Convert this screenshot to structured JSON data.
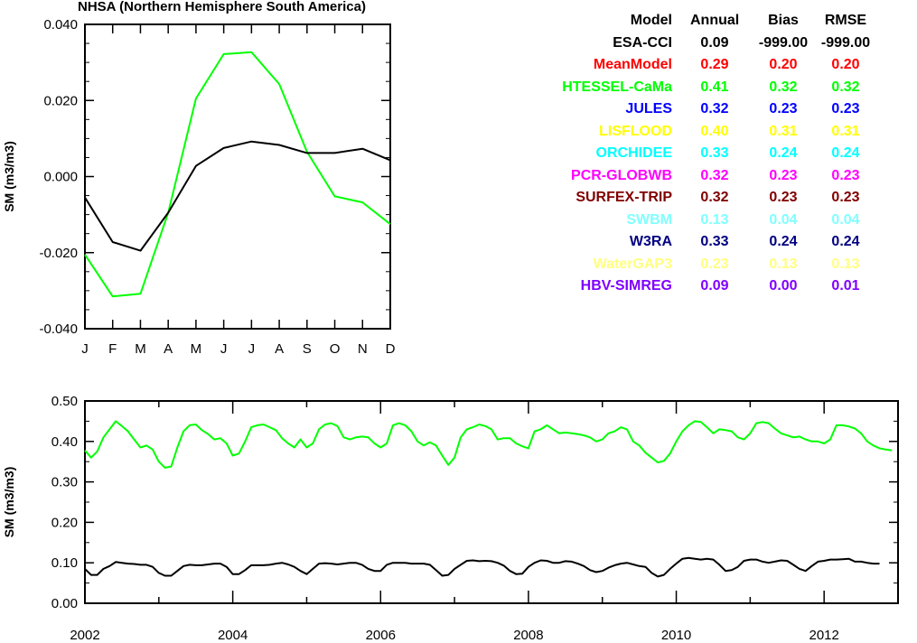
{
  "top_title": "NHSA (Northern Hemisphere South America)",
  "table": {
    "header": [
      "Model",
      "Annual",
      "Bias",
      "RMSE"
    ],
    "rows": [
      {
        "model": "ESA-CCI",
        "annual": "0.09",
        "bias": "-999.00",
        "rmse": "-999.00",
        "color": "#000000"
      },
      {
        "model": "MeanModel",
        "annual": "0.29",
        "bias": "0.20",
        "rmse": "0.20",
        "color": "#ff0000"
      },
      {
        "model": "HTESSEL-CaMa",
        "annual": "0.41",
        "bias": "0.32",
        "rmse": "0.32",
        "color": "#00ff00"
      },
      {
        "model": "JULES",
        "annual": "0.32",
        "bias": "0.23",
        "rmse": "0.23",
        "color": "#0000ff"
      },
      {
        "model": "LISFLOOD",
        "annual": "0.40",
        "bias": "0.31",
        "rmse": "0.31",
        "color": "#ffff00"
      },
      {
        "model": "ORCHIDEE",
        "annual": "0.33",
        "bias": "0.24",
        "rmse": "0.24",
        "color": "#00ffff"
      },
      {
        "model": "PCR-GLOBWB",
        "annual": "0.32",
        "bias": "0.23",
        "rmse": "0.23",
        "color": "#ff00ff"
      },
      {
        "model": "SURFEX-TRIP",
        "annual": "0.32",
        "bias": "0.23",
        "rmse": "0.23",
        "color": "#800000"
      },
      {
        "model": "SWBM",
        "annual": "0.13",
        "bias": "0.04",
        "rmse": "0.04",
        "color": "#80ffff"
      },
      {
        "model": "W3RA",
        "annual": "0.33",
        "bias": "0.24",
        "rmse": "0.24",
        "color": "#000080"
      },
      {
        "model": "WaterGAP3",
        "annual": "0.23",
        "bias": "0.13",
        "rmse": "0.13",
        "color": "#ffff80"
      },
      {
        "model": "HBV-SIMREG",
        "annual": "0.09",
        "bias": "0.00",
        "rmse": "0.01",
        "color": "#8000ff"
      }
    ]
  },
  "chart_data": [
    {
      "type": "line",
      "title": "NHSA (Northern Hemisphere South America)",
      "ylabel": "SM (m3/m3)",
      "xlabel": "",
      "categories": [
        "J",
        "F",
        "M",
        "A",
        "M",
        "J",
        "J",
        "A",
        "S",
        "O",
        "N",
        "D"
      ],
      "ylim": [
        -0.04,
        0.04
      ],
      "yticks": [
        -0.04,
        -0.02,
        0.0,
        0.02,
        0.04
      ],
      "ytick_labels": [
        "-0.040",
        "-0.020",
        "0.000",
        "0.020",
        "0.040"
      ],
      "grid": false,
      "series": [
        {
          "color": "#00ff00",
          "values": [
            -0.0205,
            -0.0315,
            -0.0308,
            -0.0095,
            0.0205,
            0.0322,
            0.0327,
            0.0243,
            0.0065,
            -0.0052,
            -0.0068,
            -0.0125
          ]
        },
        {
          "color": "#000000",
          "values": [
            -0.0055,
            -0.0172,
            -0.0195,
            -0.0095,
            0.0028,
            0.0075,
            0.0092,
            0.0083,
            0.0062,
            0.0062,
            0.0073,
            0.0043
          ]
        }
      ]
    },
    {
      "type": "line",
      "title": "",
      "ylabel": "SM (m3/m3)",
      "xlabel": "",
      "xlim": [
        2002,
        2013
      ],
      "xticks": [
        2002,
        2004,
        2006,
        2008,
        2010,
        2012
      ],
      "ylim": [
        0.0,
        0.5
      ],
      "yticks": [
        0.0,
        0.1,
        0.2,
        0.3,
        0.4,
        0.5
      ],
      "ytick_labels": [
        "0.00",
        "0.10",
        "0.20",
        "0.30",
        "0.40",
        "0.50"
      ],
      "grid": false,
      "series": [
        {
          "color": "#00ff00",
          "x_start": 2002.0,
          "x_step": 0.0833333,
          "values": [
            0.378,
            0.36,
            0.375,
            0.41,
            0.43,
            0.45,
            0.438,
            0.425,
            0.405,
            0.385,
            0.39,
            0.38,
            0.35,
            0.335,
            0.338,
            0.385,
            0.425,
            0.44,
            0.442,
            0.428,
            0.418,
            0.405,
            0.408,
            0.395,
            0.365,
            0.37,
            0.4,
            0.435,
            0.44,
            0.442,
            0.435,
            0.428,
            0.408,
            0.395,
            0.385,
            0.405,
            0.385,
            0.395,
            0.43,
            0.442,
            0.445,
            0.438,
            0.41,
            0.405,
            0.41,
            0.412,
            0.41,
            0.395,
            0.385,
            0.395,
            0.44,
            0.445,
            0.44,
            0.425,
            0.4,
            0.39,
            0.398,
            0.39,
            0.365,
            0.342,
            0.36,
            0.41,
            0.43,
            0.435,
            0.442,
            0.438,
            0.43,
            0.405,
            0.408,
            0.408,
            0.395,
            0.388,
            0.383,
            0.425,
            0.43,
            0.44,
            0.43,
            0.42,
            0.422,
            0.42,
            0.418,
            0.415,
            0.41,
            0.4,
            0.405,
            0.42,
            0.425,
            0.435,
            0.43,
            0.4,
            0.39,
            0.372,
            0.36,
            0.348,
            0.352,
            0.37,
            0.4,
            0.425,
            0.44,
            0.45,
            0.448,
            0.435,
            0.42,
            0.43,
            0.428,
            0.425,
            0.41,
            0.405,
            0.42,
            0.445,
            0.448,
            0.445,
            0.432,
            0.42,
            0.415,
            0.41,
            0.412,
            0.405,
            0.4,
            0.4,
            0.395,
            0.405,
            0.44,
            0.44,
            0.437,
            0.432,
            0.42,
            0.4,
            0.39,
            0.383,
            0.38,
            0.378
          ]
        },
        {
          "color": "#000000",
          "x_start": 2002.0,
          "x_step": 0.0833333,
          "values": [
            0.085,
            0.07,
            0.07,
            0.085,
            0.092,
            0.102,
            0.1,
            0.098,
            0.097,
            0.095,
            0.095,
            0.09,
            0.075,
            0.068,
            0.068,
            0.08,
            0.092,
            0.095,
            0.094,
            0.094,
            0.096,
            0.098,
            0.098,
            0.09,
            0.072,
            0.072,
            0.082,
            0.094,
            0.094,
            0.094,
            0.095,
            0.098,
            0.1,
            0.096,
            0.09,
            0.08,
            0.072,
            0.085,
            0.098,
            0.099,
            0.098,
            0.096,
            0.098,
            0.1,
            0.1,
            0.095,
            0.085,
            0.08,
            0.08,
            0.095,
            0.1,
            0.1,
            0.1,
            0.098,
            0.098,
            0.098,
            0.095,
            0.082,
            0.068,
            0.07,
            0.085,
            0.095,
            0.105,
            0.106,
            0.104,
            0.105,
            0.104,
            0.1,
            0.093,
            0.08,
            0.072,
            0.073,
            0.09,
            0.1,
            0.106,
            0.105,
            0.1,
            0.1,
            0.104,
            0.103,
            0.098,
            0.092,
            0.082,
            0.077,
            0.08,
            0.088,
            0.094,
            0.098,
            0.1,
            0.096,
            0.092,
            0.09,
            0.075,
            0.066,
            0.07,
            0.085,
            0.098,
            0.11,
            0.112,
            0.11,
            0.108,
            0.11,
            0.108,
            0.095,
            0.08,
            0.082,
            0.09,
            0.105,
            0.108,
            0.108,
            0.103,
            0.1,
            0.103,
            0.106,
            0.105,
            0.095,
            0.085,
            0.08,
            0.092,
            0.103,
            0.105,
            0.108,
            0.108,
            0.109,
            0.11,
            0.103,
            0.103,
            0.1,
            0.098,
            0.098
          ]
        }
      ]
    }
  ]
}
